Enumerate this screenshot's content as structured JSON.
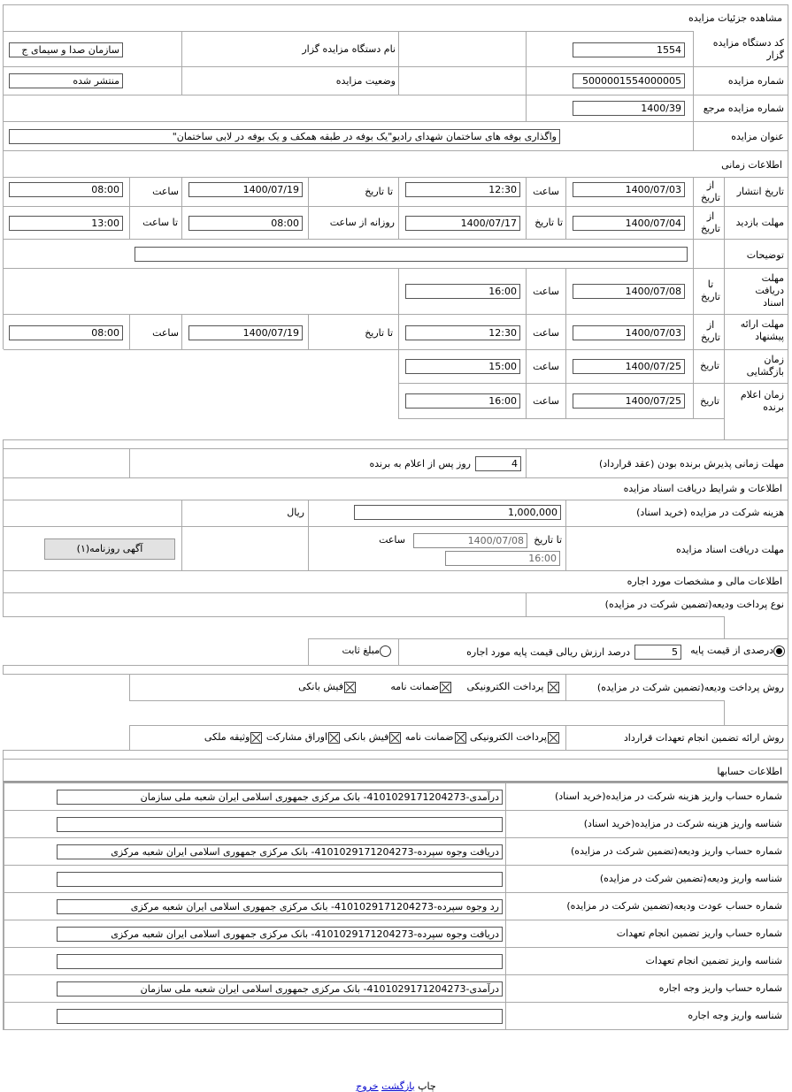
{
  "page_title": "مشاهده جزئیات مزایده",
  "general": {
    "org_code_label": "کد دستگاه مزایده گزار",
    "org_code": "1554",
    "org_name_label": "نام دستگاه مزایده گزار",
    "org_name": "سازمان صدا و سیمای ج",
    "auction_no_label": "شماره مزایده",
    "auction_no": "5000001554000005",
    "status_label": "وضعیت مزایده",
    "status": "منتشر شده",
    "ref_no_label": "شماره مزایده مرجع",
    "ref_no": "1400/39",
    "title_label": "عنوان مزایده",
    "title": "واگذاری بوفه های ساختمان شهدای رادیو\"یک بوفه در طبقه همکف و یک بوفه در لابی ساختمان\""
  },
  "time": {
    "header": "اطلاعات زمانی",
    "from_date": "از تاریخ",
    "to_date": "تا تاریخ",
    "date": "تاریخ",
    "hour": "ساعت",
    "to_hour": "تا ساعت",
    "daily_from_hour": "روزانه از ساعت",
    "publish": {
      "label": "تاریخ انتشار",
      "from": "1400/07/03",
      "from_time": "12:30",
      "to": "1400/07/19",
      "to_time": "08:00"
    },
    "visit": {
      "label": "مهلت بازدید",
      "from": "1400/07/04",
      "to": "1400/07/17",
      "daily_from": "08:00",
      "daily_to": "13:00"
    },
    "notes_label": "توضیحات",
    "notes": "",
    "docs": {
      "label": "مهلت دریافت اسناد",
      "to": "1400/07/08",
      "to_time": "16:00"
    },
    "offer": {
      "label": "مهلت ارائه پیشنهاد",
      "from": "1400/07/03",
      "from_time": "12:30",
      "to": "1400/07/19",
      "to_time": "08:00"
    },
    "opening": {
      "label": "زمان بازگشایی",
      "date": "1400/07/25",
      "time": "15:00"
    },
    "winner": {
      "label": "زمان اعلام برنده",
      "date": "1400/07/25",
      "time": "16:00"
    }
  },
  "acceptance": {
    "label": "مهلت زمانی پذیرش برنده بودن (عقد قرارداد)",
    "days": "4",
    "suffix": "روز پس از اعلام به برنده"
  },
  "docs_section": {
    "header": "اطلاعات و شرایط دریافت اسناد مزایده",
    "fee_label": "هزینه شرکت در مزایده (خرید اسناد)",
    "fee": "1,000,000",
    "currency": "ریال",
    "deadline_label": "مهلت دریافت اسناد مزایده",
    "to_date_label": "تا تاریخ",
    "to_date": "1400/07/08",
    "hour_label": "ساعت",
    "to_time": "16:00",
    "newspaper_button": "آگهی روزنامه(۱)"
  },
  "finance": {
    "header": "اطلاعات مالی و مشخصات مورد اجاره",
    "deposit_type_label": "نوع پرداخت ودیعه(تضمین شرکت در مزایده)",
    "percent_option": "درصدی از قیمت پایه",
    "percent": "5",
    "percent_suffix": "درصد ارزش ریالی قیمت پایه مورد اجاره",
    "fixed_option": "مبلغ ثابت",
    "deposit_method_label": "روش پرداخت ودیعه(تضمین شرکت در مزایده)",
    "deposit_methods": [
      "پرداخت الکترونیکی",
      "ضمانت نامه",
      "فیش بانکی"
    ],
    "guarantee_label": "روش ارائه تضمین انجام تعهدات قرارداد",
    "guarantee_methods": [
      "پرداخت الکترونیکی",
      "ضمانت نامه",
      "فیش بانکی",
      "اوراق مشارکت",
      "وثیقه ملکی"
    ]
  },
  "accounts": {
    "header": "اطلاعات حسابها",
    "rows": [
      {
        "label": "شماره حساب واریز هزینه شرکت در مزایده(خرید اسناد)",
        "value": "درآمدی-4101029171204273- بانک مرکزی جمهوری اسلامی ایران شعبه ملی سازمان"
      },
      {
        "label": "شناسه واریز هزینه شرکت در مزایده(خرید اسناد)",
        "value": ""
      },
      {
        "label": "شماره حساب واریز ودیعه(تضمین شرکت در مزایده)",
        "value": "دریافت وجوه سپرده-4101029171204273- بانک مرکزی جمهوری اسلامی ایران شعبه مرکزی"
      },
      {
        "label": "شناسه واریز ودیعه(تضمین شرکت در مزایده)",
        "value": ""
      },
      {
        "label": "شماره حساب عودت ودیعه(تضمین شرکت در مزایده)",
        "value": "رد وجوه سپرده-4101029171204273- بانک مرکزی جمهوری اسلامی ایران شعبه مرکزی"
      },
      {
        "label": "شماره حساب واریز تضمین انجام تعهدات",
        "value": "دریافت وجوه سپرده-4101029171204273- بانک مرکزی جمهوری اسلامی ایران شعبه مرکزی"
      },
      {
        "label": "شناسه واریز تضمین انجام تعهدات",
        "value": ""
      },
      {
        "label": "شماره حساب واریز وجه اجاره",
        "value": "درآمدی-4101029171204273- بانک مرکزی جمهوری اسلامی ایران شعبه ملی سازمان"
      },
      {
        "label": "شناسه واریز وجه اجاره",
        "value": ""
      }
    ]
  },
  "footer": {
    "print": "چاپ",
    "back": "بازگشت",
    "exit": "خروج"
  }
}
